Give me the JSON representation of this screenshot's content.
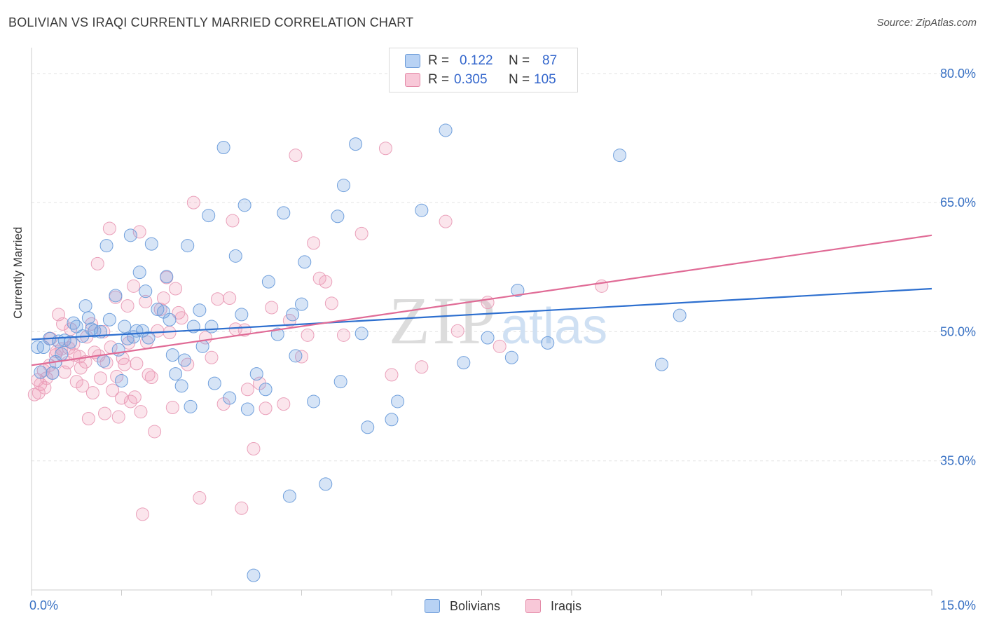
{
  "title": "BOLIVIAN VS IRAQI CURRENTLY MARRIED CORRELATION CHART",
  "source": "Source: ZipAtlas.com",
  "watermark": "ZIPatlas",
  "stats": [
    {
      "r_label": "R =",
      "r_value": "0.122",
      "n_label": "N =",
      "n_value": "87",
      "color": "#b8d2f4",
      "border": "#6a9ad8"
    },
    {
      "r_label": "R =",
      "r_value": "0.305",
      "n_label": "N =",
      "n_value": "105",
      "color": "#f8c8d8",
      "border": "#e48aa8"
    }
  ],
  "legend": [
    {
      "label": "Bolivians",
      "color": "#b8d2f4",
      "border": "#6a9ad8"
    },
    {
      "label": "Iraqis",
      "color": "#f8c8d8",
      "border": "#e48aa8"
    }
  ],
  "colors": {
    "blue_fill": "rgba(120,165,225,0.30)",
    "blue_stroke": "#6f9fdc",
    "blue_line": "#2d6fcf",
    "pink_fill": "rgba(240,150,180,0.25)",
    "pink_stroke": "#eaa0ba",
    "pink_line": "#e06b96",
    "tick_text": "#3a72c4",
    "grid": "#e3e3e3"
  },
  "chart_data": {
    "type": "scatter",
    "ylabel": "Currently Married",
    "xlabel": "",
    "xlim": [
      0,
      15
    ],
    "ylim": [
      20,
      83
    ],
    "x_tick_labels": [
      {
        "value": 0,
        "label": "0.0%"
      },
      {
        "value": 15,
        "label": "15.0%"
      }
    ],
    "y_tick_labels": [
      {
        "value": 80,
        "label": "80.0%"
      },
      {
        "value": 65,
        "label": "65.0%"
      },
      {
        "value": 50,
        "label": "50.0%"
      },
      {
        "value": 35,
        "label": "35.0%"
      }
    ],
    "grid": true,
    "legend_position": "bottom",
    "series": [
      {
        "name": "Bolivians",
        "trend": [
          [
            0,
            49.1
          ],
          [
            15,
            55.0
          ]
        ],
        "points": [
          [
            0.1,
            48.2
          ],
          [
            0.2,
            48.2
          ],
          [
            0.3,
            49.2
          ],
          [
            0.4,
            46.5
          ],
          [
            0.45,
            48.9
          ],
          [
            0.5,
            47.4
          ],
          [
            0.55,
            49.0
          ],
          [
            0.7,
            51.0
          ],
          [
            0.75,
            50.6
          ],
          [
            0.85,
            49.5
          ],
          [
            0.9,
            53.0
          ],
          [
            0.95,
            51.6
          ],
          [
            1.0,
            50.3
          ],
          [
            1.05,
            50.1
          ],
          [
            1.2,
            46.6
          ],
          [
            1.25,
            60.0
          ],
          [
            1.3,
            51.4
          ],
          [
            1.4,
            54.2
          ],
          [
            1.45,
            47.9
          ],
          [
            1.5,
            44.3
          ],
          [
            1.55,
            50.6
          ],
          [
            1.6,
            49.2
          ],
          [
            1.65,
            61.2
          ],
          [
            1.7,
            49.4
          ],
          [
            1.8,
            56.9
          ],
          [
            1.85,
            50.1
          ],
          [
            1.9,
            54.7
          ],
          [
            1.95,
            49.3
          ],
          [
            2.0,
            60.2
          ],
          [
            2.1,
            52.6
          ],
          [
            2.2,
            52.3
          ],
          [
            2.25,
            56.4
          ],
          [
            2.3,
            51.4
          ],
          [
            2.35,
            47.3
          ],
          [
            2.4,
            45.1
          ],
          [
            2.5,
            43.7
          ],
          [
            2.55,
            46.7
          ],
          [
            2.6,
            60.0
          ],
          [
            2.65,
            41.3
          ],
          [
            2.7,
            50.6
          ],
          [
            2.8,
            52.5
          ],
          [
            2.85,
            48.3
          ],
          [
            2.95,
            63.5
          ],
          [
            3.0,
            50.6
          ],
          [
            3.05,
            44.0
          ],
          [
            3.2,
            71.4
          ],
          [
            3.3,
            42.3
          ],
          [
            3.4,
            58.8
          ],
          [
            3.5,
            52.0
          ],
          [
            3.55,
            64.7
          ],
          [
            3.6,
            41.0
          ],
          [
            3.7,
            21.7
          ],
          [
            3.75,
            45.1
          ],
          [
            3.9,
            43.3
          ],
          [
            3.95,
            55.8
          ],
          [
            4.1,
            49.7
          ],
          [
            4.2,
            63.8
          ],
          [
            4.3,
            30.9
          ],
          [
            4.35,
            52.0
          ],
          [
            4.4,
            47.2
          ],
          [
            4.5,
            53.2
          ],
          [
            4.55,
            58.1
          ],
          [
            4.7,
            41.9
          ],
          [
            4.9,
            32.3
          ],
          [
            5.1,
            63.4
          ],
          [
            5.15,
            44.2
          ],
          [
            5.2,
            67.0
          ],
          [
            5.4,
            71.8
          ],
          [
            5.5,
            49.8
          ],
          [
            5.6,
            38.9
          ],
          [
            6.0,
            39.8
          ],
          [
            6.1,
            41.9
          ],
          [
            6.5,
            64.1
          ],
          [
            6.9,
            73.4
          ],
          [
            7.2,
            46.4
          ],
          [
            7.6,
            49.3
          ],
          [
            8.0,
            47.0
          ],
          [
            8.1,
            54.8
          ],
          [
            8.6,
            48.7
          ],
          [
            9.8,
            70.5
          ],
          [
            10.5,
            46.2
          ],
          [
            10.8,
            51.9
          ],
          [
            0.15,
            45.3
          ],
          [
            1.15,
            50.0
          ],
          [
            0.65,
            48.8
          ],
          [
            1.75,
            50.1
          ],
          [
            0.35,
            45.2
          ]
        ]
      },
      {
        "name": "Iraqis",
        "trend": [
          [
            0,
            46.1
          ],
          [
            15,
            61.2
          ]
        ],
        "points": [
          [
            0.05,
            42.7
          ],
          [
            0.1,
            44.4
          ],
          [
            0.15,
            43.9
          ],
          [
            0.2,
            45.5
          ],
          [
            0.25,
            44.6
          ],
          [
            0.3,
            46.1
          ],
          [
            0.35,
            45.2
          ],
          [
            0.4,
            47.3
          ],
          [
            0.45,
            52.0
          ],
          [
            0.5,
            48.0
          ],
          [
            0.55,
            45.3
          ],
          [
            0.6,
            46.4
          ],
          [
            0.65,
            50.3
          ],
          [
            0.7,
            48.6
          ],
          [
            0.75,
            44.2
          ],
          [
            0.8,
            47.1
          ],
          [
            0.85,
            43.7
          ],
          [
            0.9,
            46.5
          ],
          [
            0.95,
            39.9
          ],
          [
            1.0,
            50.9
          ],
          [
            1.05,
            47.6
          ],
          [
            1.1,
            57.9
          ],
          [
            1.15,
            44.6
          ],
          [
            1.2,
            50.0
          ],
          [
            1.25,
            46.4
          ],
          [
            1.3,
            62.0
          ],
          [
            1.35,
            43.2
          ],
          [
            1.4,
            54.0
          ],
          [
            1.45,
            40.1
          ],
          [
            1.5,
            42.3
          ],
          [
            1.55,
            46.2
          ],
          [
            1.6,
            53.0
          ],
          [
            1.65,
            41.9
          ],
          [
            1.7,
            55.3
          ],
          [
            1.75,
            46.3
          ],
          [
            1.8,
            61.6
          ],
          [
            1.85,
            28.8
          ],
          [
            1.9,
            53.5
          ],
          [
            1.95,
            45.0
          ],
          [
            2.0,
            44.7
          ],
          [
            2.05,
            38.4
          ],
          [
            2.1,
            50.1
          ],
          [
            2.15,
            52.6
          ],
          [
            2.2,
            53.9
          ],
          [
            2.25,
            56.3
          ],
          [
            2.3,
            49.9
          ],
          [
            2.35,
            41.2
          ],
          [
            2.4,
            55.0
          ],
          [
            2.45,
            52.2
          ],
          [
            2.5,
            51.6
          ],
          [
            2.6,
            46.2
          ],
          [
            2.7,
            65.0
          ],
          [
            2.8,
            30.7
          ],
          [
            2.9,
            49.3
          ],
          [
            3.0,
            47.0
          ],
          [
            3.1,
            53.8
          ],
          [
            3.2,
            41.6
          ],
          [
            3.3,
            53.9
          ],
          [
            3.35,
            62.9
          ],
          [
            3.4,
            50.3
          ],
          [
            3.5,
            29.5
          ],
          [
            3.55,
            50.2
          ],
          [
            3.6,
            43.3
          ],
          [
            3.7,
            36.4
          ],
          [
            3.8,
            44.0
          ],
          [
            3.9,
            41.1
          ],
          [
            4.0,
            52.8
          ],
          [
            4.2,
            41.6
          ],
          [
            4.3,
            51.3
          ],
          [
            4.4,
            70.5
          ],
          [
            4.5,
            47.1
          ],
          [
            4.6,
            49.6
          ],
          [
            4.7,
            60.3
          ],
          [
            4.8,
            56.2
          ],
          [
            4.9,
            55.8
          ],
          [
            5.0,
            53.3
          ],
          [
            5.2,
            49.6
          ],
          [
            5.5,
            61.4
          ],
          [
            5.9,
            71.3
          ],
          [
            6.0,
            45.0
          ],
          [
            6.5,
            45.9
          ],
          [
            6.9,
            62.8
          ],
          [
            7.1,
            50.1
          ],
          [
            7.6,
            53.4
          ],
          [
            7.8,
            48.3
          ],
          [
            9.5,
            55.3
          ],
          [
            0.12,
            42.9
          ],
          [
            0.22,
            43.5
          ],
          [
            0.32,
            49.2
          ],
          [
            0.42,
            47.7
          ],
          [
            0.52,
            50.9
          ],
          [
            0.62,
            48.1
          ],
          [
            0.72,
            47.3
          ],
          [
            0.82,
            45.8
          ],
          [
            0.92,
            49.4
          ],
          [
            1.02,
            42.9
          ],
          [
            1.12,
            47.2
          ],
          [
            1.22,
            40.5
          ],
          [
            1.32,
            48.2
          ],
          [
            1.42,
            44.8
          ],
          [
            1.52,
            46.9
          ],
          [
            1.62,
            48.7
          ],
          [
            1.72,
            42.4
          ],
          [
            1.82,
            40.7
          ],
          [
            1.92,
            48.8
          ]
        ]
      }
    ]
  }
}
